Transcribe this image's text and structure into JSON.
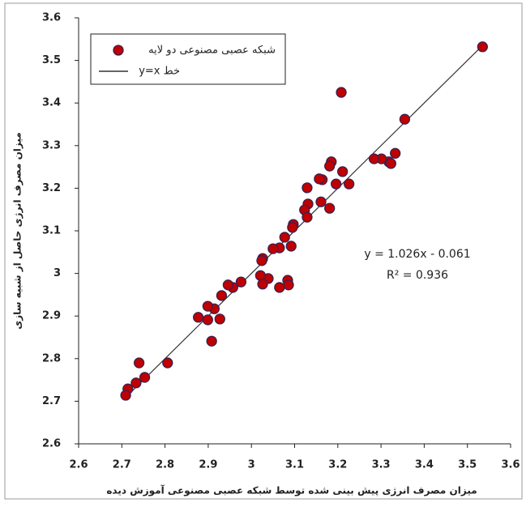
{
  "chart_data": {
    "type": "scatter",
    "x_label": "میزان مصرف انرژی پیش بینی شده توسط شبکه عصبی مصنوعی آموزش دیده",
    "y_label": "میزان مصرف انرژی حاصل از شبیه سازی",
    "annotations": [
      "y = 1.026x - 0.061",
      "R² = 0.936"
    ],
    "legend_position": "upper left",
    "series": [
      {
        "name": "شبکه عصبی مصنوعی دو لایه",
        "color": "#c00000",
        "x": [
          3.535,
          3.355,
          3.208,
          3.333,
          3.318,
          3.301,
          3.323,
          3.284,
          3.226,
          3.211,
          3.196,
          3.185,
          3.181,
          3.164,
          3.157,
          3.129,
          3.161,
          3.181,
          3.131,
          3.123,
          3.129,
          3.097,
          3.095,
          3.077,
          3.092,
          3.065,
          3.05,
          3.026,
          3.024,
          3.039,
          3.021,
          3.026,
          3.084,
          3.086,
          3.065,
          2.976,
          2.957,
          2.946,
          2.931,
          2.927,
          2.914,
          2.899,
          2.899,
          2.877,
          2.908,
          2.806,
          2.753,
          2.74,
          2.733,
          2.714,
          2.709
        ],
        "y": [
          3.532,
          3.362,
          3.425,
          3.282,
          3.262,
          3.269,
          3.258,
          3.269,
          3.21,
          3.239,
          3.21,
          3.262,
          3.252,
          3.22,
          3.222,
          3.201,
          3.168,
          3.153,
          3.163,
          3.149,
          3.132,
          3.115,
          3.108,
          3.085,
          3.064,
          3.06,
          3.058,
          3.035,
          3.03,
          2.988,
          2.995,
          2.975,
          2.984,
          2.973,
          2.967,
          2.98,
          2.967,
          2.973,
          2.948,
          2.893,
          2.917,
          2.923,
          2.891,
          2.897,
          2.841,
          2.79,
          2.756,
          2.79,
          2.743,
          2.729,
          2.714
        ]
      },
      {
        "name": "خط y=x",
        "color": "#333333",
        "x": [
          2.705,
          3.535
        ],
        "y": [
          2.705,
          3.535
        ]
      }
    ],
    "xlim": [
      2.6,
      3.6
    ],
    "xticks": [
      2.6,
      2.7,
      2.8,
      2.9,
      3,
      3.1,
      3.2,
      3.3,
      3.4,
      3.5,
      3.6
    ],
    "ylim": [
      2.6,
      3.6
    ],
    "yticks": [
      2.6,
      2.7,
      2.8,
      2.9,
      3,
      3.1,
      3.2,
      3.3,
      3.4,
      3.5,
      3.6
    ]
  }
}
